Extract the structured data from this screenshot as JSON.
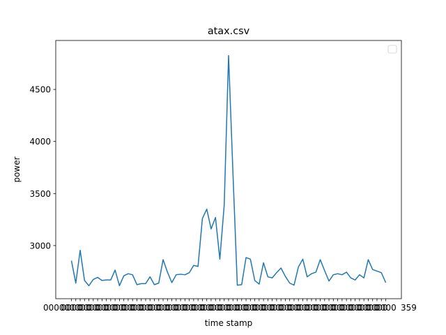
{
  "chart_data": {
    "type": "line",
    "title": "atax.csv",
    "xlabel": "time stamp",
    "ylabel": "power",
    "ylim": [
      2490,
      4970
    ],
    "yticks": [
      3000,
      3500,
      4000,
      4500
    ],
    "grid": false,
    "legend": "upper right (empty)",
    "line_color": "#1f77b4",
    "x_tick_labels_first": "00000",
    "x_tick_labels_last": "359",
    "series": [
      {
        "values": [
          2855,
          2640,
          2955,
          2665,
          2615,
          2675,
          2695,
          2665,
          2670,
          2670,
          2765,
          2615,
          2710,
          2730,
          2720,
          2625,
          2635,
          2635,
          2700,
          2625,
          2640,
          2865,
          2745,
          2645,
          2720,
          2725,
          2720,
          2740,
          2810,
          2800,
          3260,
          3350,
          3160,
          3270,
          2870,
          3390,
          4825,
          3700,
          2620,
          2625,
          2885,
          2870,
          2665,
          2630,
          2835,
          2700,
          2690,
          2740,
          2785,
          2705,
          2640,
          2620,
          2795,
          2870,
          2700,
          2730,
          2745,
          2865,
          2760,
          2660,
          2720,
          2730,
          2720,
          2745,
          2690,
          2670,
          2720,
          2690,
          2865,
          2770,
          2755,
          2740,
          2645
        ]
      }
    ]
  }
}
